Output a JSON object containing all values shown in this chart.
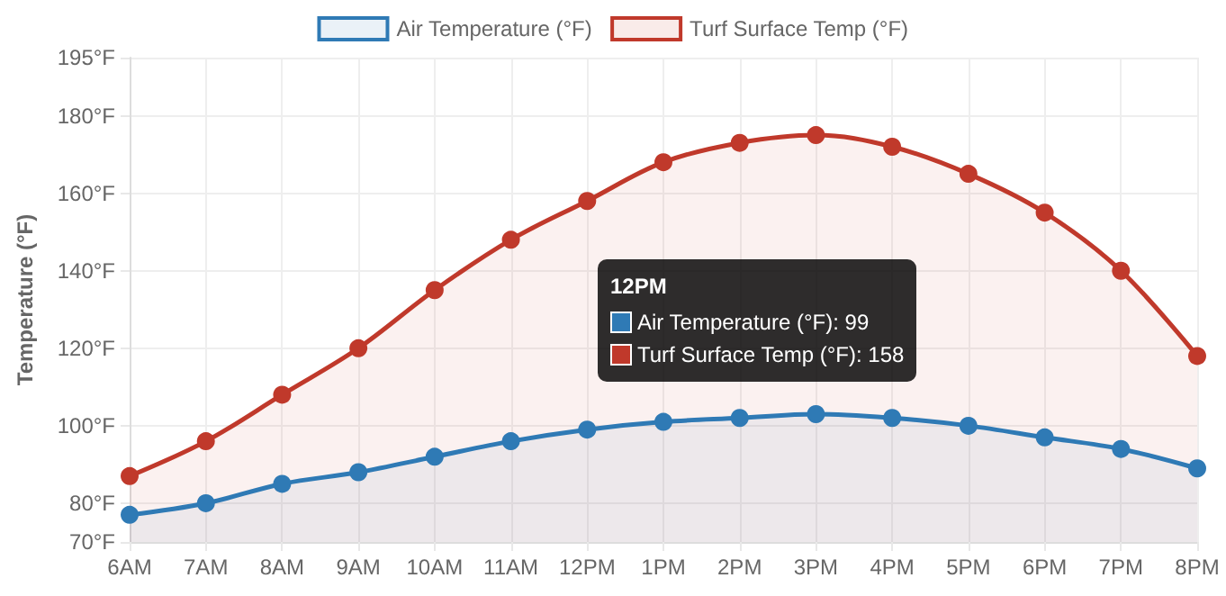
{
  "chart_data": {
    "type": "area",
    "ylabel": "Temperature (°F)",
    "categories": [
      "6AM",
      "7AM",
      "8AM",
      "9AM",
      "10AM",
      "11AM",
      "12PM",
      "1PM",
      "2PM",
      "3PM",
      "4PM",
      "5PM",
      "6PM",
      "7PM",
      "8PM"
    ],
    "series": [
      {
        "name": "Air Temperature (°F)",
        "color": "#2f7ab5",
        "values": [
          77,
          80,
          85,
          88,
          92,
          96,
          99,
          101,
          102,
          103,
          102,
          100,
          97,
          94,
          89
        ]
      },
      {
        "name": "Turf Surface Temp (°F)",
        "color": "#c0392b",
        "values": [
          87,
          96,
          108,
          120,
          135,
          148,
          158,
          168,
          173,
          175,
          172,
          165,
          155,
          140,
          118
        ]
      }
    ],
    "ylim": [
      70,
      195
    ],
    "yticks": [
      {
        "value": 70,
        "label": "70°F"
      },
      {
        "value": 80,
        "label": "80°F"
      },
      {
        "value": 100,
        "label": "100°F"
      },
      {
        "value": 120,
        "label": "120°F"
      },
      {
        "value": 140,
        "label": "140°F"
      },
      {
        "value": 160,
        "label": "160°F"
      },
      {
        "value": 180,
        "label": "180°F"
      },
      {
        "value": 195,
        "label": "195°F"
      }
    ],
    "grid": true,
    "legend": "top",
    "marker": "circle",
    "line_style": "solid",
    "annotations": [
      "12PM",
      "Air Temperature (°F): 99",
      "Turf Surface Temp (°F): 158"
    ]
  }
}
